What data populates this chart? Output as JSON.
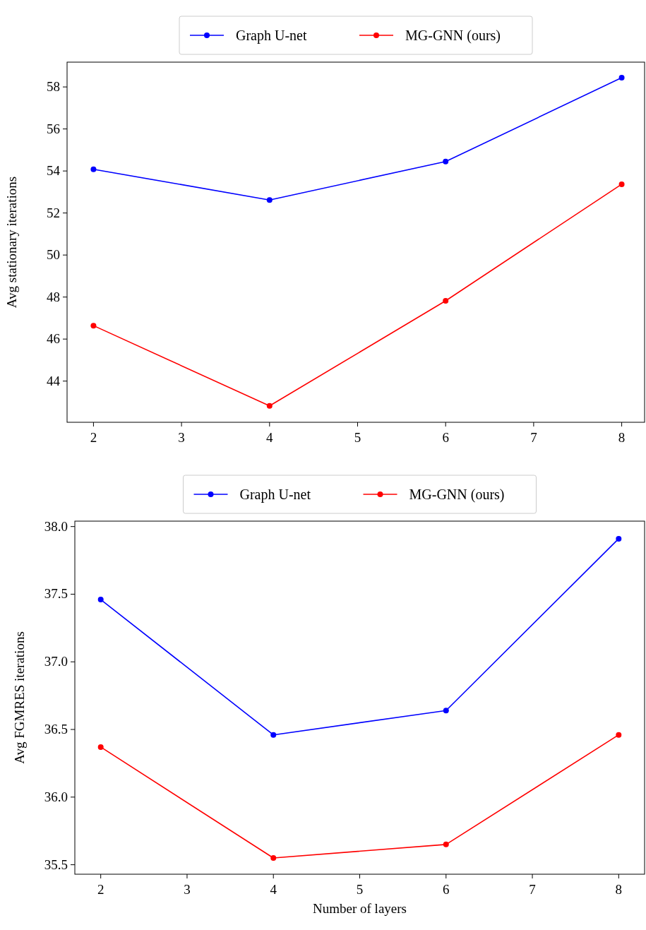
{
  "chart_data": [
    {
      "type": "line",
      "x": [
        2,
        4,
        6,
        8
      ],
      "ylabel": "Avg stationary iterations",
      "xlim": [
        1.7,
        8.26
      ],
      "ylim": [
        42.04,
        59.18
      ],
      "xticks": [
        2,
        3,
        4,
        5,
        6,
        7,
        8
      ],
      "yticks": [
        44,
        46,
        48,
        50,
        52,
        54,
        56,
        58
      ],
      "legend": "top",
      "marker": "circle",
      "grid": false,
      "series": [
        {
          "name": "Graph U-net",
          "color": "#0000ff",
          "values": [
            54.08,
            52.62,
            54.45,
            58.44
          ]
        },
        {
          "name": "MG-GNN (ours)",
          "color": "#ff0000",
          "values": [
            46.64,
            42.82,
            47.82,
            53.37
          ]
        }
      ]
    },
    {
      "type": "line",
      "x": [
        2,
        4,
        6,
        8
      ],
      "xlabel": "Number of layers",
      "ylabel": "Avg FGMRES iterations",
      "xlim": [
        1.7,
        8.3
      ],
      "ylim": [
        35.43,
        38.04
      ],
      "xticks": [
        2,
        3,
        4,
        5,
        6,
        7,
        8
      ],
      "yticks": [
        {
          "value": 35.5,
          "label": "35.5"
        },
        {
          "value": 36,
          "label": "36.0"
        },
        {
          "value": 36.5,
          "label": "36.5"
        },
        {
          "value": 37,
          "label": "37.0"
        },
        {
          "value": 37.5,
          "label": "37.5"
        },
        {
          "value": 38,
          "label": "38.0"
        }
      ],
      "legend": "top",
      "marker": "circle",
      "grid": false,
      "series": [
        {
          "name": "Graph U-net",
          "color": "#0000ff",
          "values": [
            37.46,
            36.46,
            36.64,
            37.91
          ]
        },
        {
          "name": "MG-GNN (ours)",
          "color": "#ff0000",
          "values": [
            36.37,
            35.55,
            35.65,
            36.46
          ]
        }
      ]
    }
  ]
}
